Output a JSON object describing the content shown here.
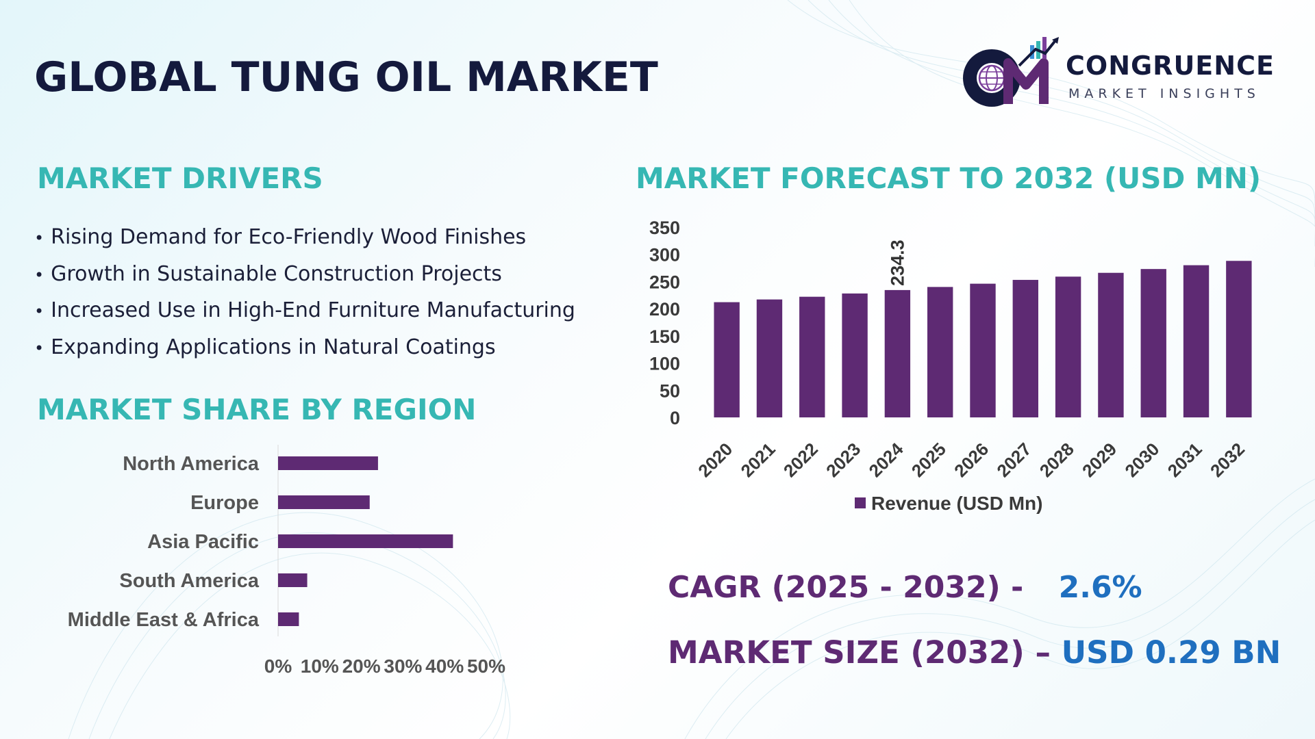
{
  "title": "GLOBAL TUNG OIL MARKET",
  "logo": {
    "name": "CONGRUENCE",
    "tagline": "MARKET INSIGHTS",
    "icon": "cm-globe-chart-logo"
  },
  "drivers": {
    "heading": "MARKET DRIVERS",
    "items": [
      "Rising Demand for Eco-Friendly Wood Finishes",
      "Growth in Sustainable Construction Projects",
      "Increased Use in High-End Furniture Manufacturing",
      "Expanding Applications in Natural Coatings"
    ]
  },
  "forecast": {
    "heading": "MARKET FORECAST TO 2032 (USD MN)"
  },
  "region": {
    "heading": "MARKET SHARE BY REGION"
  },
  "kpis": {
    "cagr_label": "CAGR (2025 - 2032) -",
    "cagr_value": "2.6%",
    "size_label": "MARKET SIZE (2032) –",
    "size_value": "USD 0.29 BN"
  },
  "colors": {
    "accent_teal": "#36b7b3",
    "bar_purple": "#5e2a73",
    "title_navy": "#141a3d",
    "value_blue": "#1f6fbf"
  },
  "chart_data": [
    {
      "type": "bar",
      "categories": [
        "2020",
        "2021",
        "2022",
        "2023",
        "2024",
        "2025",
        "2026",
        "2027",
        "2028",
        "2029",
        "2030",
        "2031",
        "2032"
      ],
      "series": [
        {
          "name": "Revenue (USD Mn)",
          "values": [
            212,
            217,
            222,
            228,
            234.3,
            240,
            246,
            253,
            259,
            266,
            273,
            280,
            288
          ]
        }
      ],
      "data_labels": [
        {
          "category": "2024",
          "text": "234.3"
        }
      ],
      "yticks": [
        "0",
        "50",
        "100",
        "150",
        "200",
        "250",
        "300",
        "350"
      ],
      "ylim": [
        0,
        350
      ],
      "grid": false,
      "legend": "bottom"
    },
    {
      "type": "bar",
      "orientation": "horizontal",
      "categories": [
        "North America",
        "Europe",
        "Asia Pacific",
        "South America",
        "Middle East & Africa"
      ],
      "values": [
        24,
        22,
        42,
        7,
        5
      ],
      "xticks": [
        "0%",
        "10%",
        "20%",
        "30%",
        "40%",
        "50%"
      ],
      "xlim": [
        0,
        50
      ],
      "grid": false
    }
  ]
}
